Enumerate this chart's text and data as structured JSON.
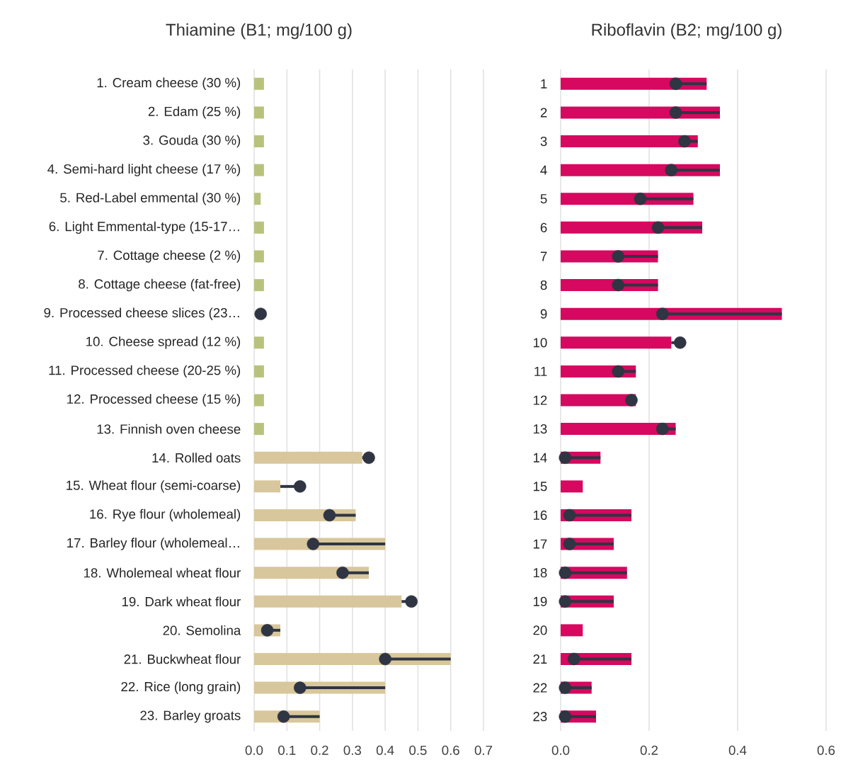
{
  "chart_data": [
    {
      "type": "bar",
      "orientation": "horizontal",
      "title": "Thiamine (B1; mg/100 g)",
      "grid": "x",
      "categories": [
        "1. Cream cheese (30 %)",
        "2. Edam (25 %)",
        "3. Gouda (30 %)",
        "4. Semi-hard light cheese (17 %)",
        "5. Red-Label emmental (30 %)",
        "6. Light Emmental-type (15-17…",
        "7. Cottage cheese (2 %)",
        "8. Cottage cheese (fat-free)",
        "9. Processed cheese slices (23…",
        "10. Cheese spread (12 %)",
        "11. Processed cheese (20-25 %)",
        "12. Processed cheese (15 %)",
        "13. Finnish oven cheese",
        "14. Rolled oats",
        "15. Wheat flour (semi-coarse)",
        "16. Rye flour (wholemeal)",
        "17. Barley flour (wholemeal…",
        "18. Wholemeal wheat flour",
        "19. Dark wheat flour",
        "20. Semolina",
        "21. Buckwheat flour",
        "22. Rice (long grain)",
        "23. Barley groats"
      ],
      "xlim": [
        0,
        0.7
      ],
      "xticks": [
        {
          "value": 0,
          "label": "0.0"
        },
        0.1,
        0.2,
        0.3,
        0.4,
        0.5,
        0.6,
        0.7
      ],
      "series": [
        {
          "type": "bar",
          "values": [
            0.03,
            0.03,
            0.03,
            0.03,
            0.02,
            0.03,
            0.03,
            0.03,
            null,
            0.03,
            0.03,
            0.03,
            0.03,
            0.33,
            0.08,
            0.31,
            0.4,
            0.35,
            0.45,
            0.08,
            0.6,
            0.4,
            0.2
          ],
          "colors": [
            "#b9c27c",
            "#b9c27c",
            "#b9c27c",
            "#b9c27c",
            "#b9c27c",
            "#b9c27c",
            "#b9c27c",
            "#b9c27c",
            "#b9c27c",
            "#b9c27c",
            "#b9c27c",
            "#b9c27c",
            "#b9c27c",
            "#d8c79c",
            "#d8c79c",
            "#d8c79c",
            "#d8c79c",
            "#d8c79c",
            "#d8c79c",
            "#d8c79c",
            "#d8c79c",
            "#d8c79c",
            "#d8c79c"
          ]
        },
        {
          "type": "scatter",
          "marker": "circle",
          "color": "#2f3542",
          "values": [
            null,
            null,
            null,
            null,
            null,
            null,
            null,
            null,
            0.02,
            null,
            null,
            null,
            null,
            0.35,
            0.14,
            0.23,
            0.18,
            0.27,
            0.48,
            0.04,
            0.4,
            0.14,
            0.09
          ],
          "errors": [
            null,
            null,
            null,
            null,
            null,
            null,
            null,
            null,
            null,
            null,
            null,
            null,
            null,
            [
              0.33,
              0.35
            ],
            [
              0.08,
              0.14
            ],
            [
              0.23,
              0.31
            ],
            [
              0.18,
              0.4
            ],
            [
              0.27,
              0.35
            ],
            [
              0.45,
              0.48
            ],
            [
              0.04,
              0.08
            ],
            [
              0.4,
              0.6
            ],
            [
              0.14,
              0.4
            ],
            [
              0.09,
              0.2
            ]
          ]
        }
      ]
    },
    {
      "type": "bar",
      "orientation": "horizontal",
      "title": "Riboflavin (B2; mg/100 g)",
      "grid": "x",
      "categories": [
        "1",
        "2",
        "3",
        "4",
        "5",
        "6",
        "7",
        "8",
        "9",
        "10",
        "11",
        "12",
        "13",
        "14",
        "15",
        "16",
        "17",
        "18",
        "19",
        "20",
        "21",
        "22",
        "23"
      ],
      "xlim": [
        0,
        0.6
      ],
      "xticks": [
        {
          "value": 0,
          "label": "0.0"
        },
        0.2,
        0.4,
        0.6
      ],
      "series": [
        {
          "type": "bar",
          "color": "#d6085f",
          "values": [
            0.33,
            0.36,
            0.31,
            0.36,
            0.3,
            0.32,
            0.22,
            0.22,
            0.5,
            0.25,
            0.17,
            0.17,
            0.26,
            0.09,
            0.05,
            0.16,
            0.12,
            0.15,
            0.12,
            0.05,
            0.16,
            0.07,
            0.08
          ]
        },
        {
          "type": "scatter",
          "marker": "circle",
          "color": "#2f3542",
          "values": [
            0.26,
            0.26,
            0.28,
            0.25,
            0.18,
            0.22,
            0.13,
            0.13,
            0.23,
            0.27,
            0.13,
            0.16,
            0.23,
            0.01,
            null,
            0.02,
            0.02,
            0.01,
            0.01,
            null,
            0.03,
            0.01,
            0.01
          ],
          "errors": [
            [
              0.26,
              0.33
            ],
            [
              0.26,
              0.36
            ],
            [
              0.28,
              0.31
            ],
            [
              0.25,
              0.36
            ],
            [
              0.18,
              0.3
            ],
            [
              0.22,
              0.32
            ],
            [
              0.13,
              0.22
            ],
            [
              0.13,
              0.22
            ],
            [
              0.23,
              0.5
            ],
            [
              0.25,
              0.27
            ],
            [
              0.13,
              0.17
            ],
            [
              0.16,
              0.17
            ],
            [
              0.23,
              0.26
            ],
            [
              0.01,
              0.09
            ],
            null,
            [
              0.02,
              0.16
            ],
            [
              0.02,
              0.12
            ],
            [
              0.01,
              0.15
            ],
            [
              0.01,
              0.12
            ],
            null,
            [
              0.03,
              0.16
            ],
            [
              0.01,
              0.07
            ],
            [
              0.01,
              0.08
            ]
          ]
        }
      ]
    }
  ]
}
